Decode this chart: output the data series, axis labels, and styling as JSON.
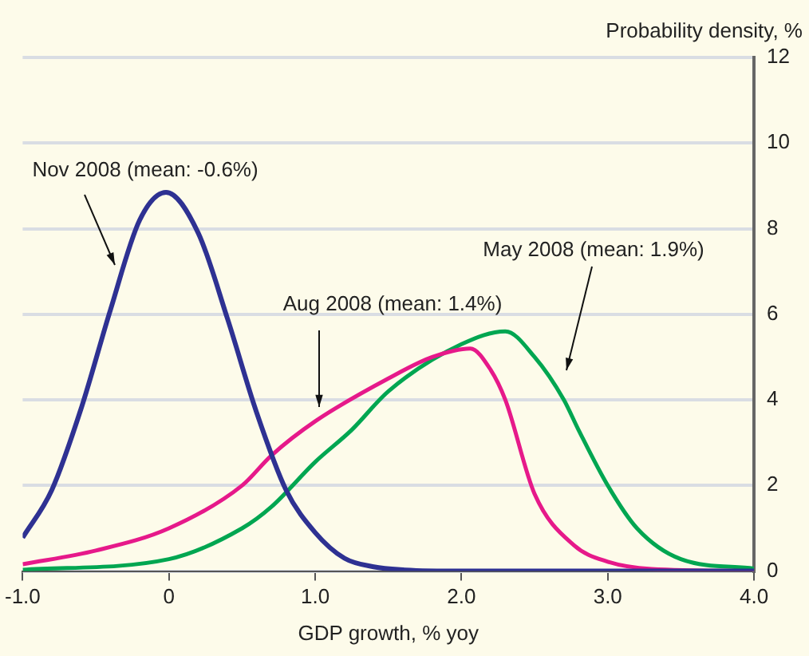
{
  "chart_data": {
    "type": "line",
    "xlabel": "GDP growth, % yoy",
    "ylabel": "Probability density, %",
    "xlim": [
      -1,
      4
    ],
    "xticks": [
      {
        "value": -1,
        "label": "-1.0"
      },
      {
        "value": 0,
        "label": "0"
      },
      {
        "value": 1,
        "label": "1.0"
      },
      {
        "value": 2,
        "label": "2.0"
      },
      {
        "value": 3,
        "label": "3.0"
      },
      {
        "value": 4,
        "label": "4.0"
      }
    ],
    "ylim": [
      0,
      12
    ],
    "yticks": [
      0,
      2,
      4,
      6,
      8,
      10,
      12
    ],
    "grid": "y",
    "legend": false,
    "marker": "none",
    "line_style": "solid",
    "series": [
      {
        "name": "Nov 2008 (mean: -0.6%)",
        "color": "#2e3192",
        "x": [
          -1,
          -0.8,
          -0.6,
          -0.4,
          -0.2,
          -0.02,
          0.2,
          0.4,
          0.6,
          0.8,
          1.0,
          1.2,
          1.4,
          1.6,
          2.0,
          3.0,
          4.0
        ],
        "values": [
          0.78,
          1.9,
          3.8,
          6.1,
          8.2,
          8.85,
          7.9,
          5.9,
          3.7,
          1.9,
          0.9,
          0.3,
          0.1,
          0.03,
          0,
          0,
          0
        ]
      },
      {
        "name": "Aug 2008 (mean: 1.4%)",
        "color": "#e6198a",
        "x": [
          -1,
          -0.5,
          0,
          0.5,
          0.7,
          1.0,
          1.5,
          1.8,
          2.06,
          2.2,
          2.3,
          2.5,
          2.77,
          3.0,
          3.3,
          4.0
        ],
        "values": [
          0.16,
          0.48,
          1.0,
          2.0,
          2.7,
          3.5,
          4.5,
          5.0,
          5.2,
          4.7,
          4.0,
          1.8,
          0.6,
          0.22,
          0.05,
          0
        ]
      },
      {
        "name": "May 2008 (mean: 1.9%)",
        "color": "#00a651",
        "x": [
          -1,
          0,
          0.5,
          0.7,
          1.0,
          1.25,
          1.5,
          2.0,
          2.3,
          2.5,
          2.7,
          2.8,
          3.0,
          3.2,
          3.5,
          4.0
        ],
        "values": [
          0.03,
          0.28,
          1.0,
          1.5,
          2.55,
          3.3,
          4.2,
          5.3,
          5.6,
          5.0,
          4.0,
          3.3,
          2.0,
          1.0,
          0.28,
          0.06
        ]
      }
    ]
  }
}
